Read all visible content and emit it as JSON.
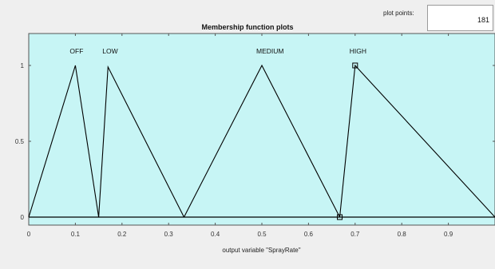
{
  "controls": {
    "plot_points_label": "plot points:",
    "plot_points_value": "181"
  },
  "chart_data": {
    "type": "line",
    "title": "Membership function plots",
    "xlabel": "output variable \"SprayRate\"",
    "ylabel": "",
    "xlim": [
      0,
      1
    ],
    "ylim": [
      -0.05,
      1.15
    ],
    "xticks": [
      "0",
      "0.1",
      "0.2",
      "0.3",
      "0.4",
      "0.5",
      "0.6",
      "0.7",
      "0.8",
      "0.9"
    ],
    "xtick_values": [
      0,
      0.1,
      0.2,
      0.3,
      0.4,
      0.5,
      0.6,
      0.7,
      0.8,
      0.9
    ],
    "yticks": [
      "0",
      "0.5",
      "1"
    ],
    "ytick_values": [
      0,
      0.5,
      1
    ],
    "background": "#c7f5f5",
    "line_color": "#000000",
    "series": [
      {
        "name": "OFF",
        "x": [
          0,
          0.1,
          0.15
        ],
        "y": [
          0,
          1,
          0
        ]
      },
      {
        "name": "LOW",
        "x": [
          0.15,
          0.17,
          0.333
        ],
        "y": [
          0,
          0.99,
          0
        ]
      },
      {
        "name": "MEDIUM",
        "x": [
          0.333,
          0.5,
          0.667
        ],
        "y": [
          0,
          1,
          0
        ]
      },
      {
        "name": "HIGH",
        "x": [
          0.667,
          0.7,
          1.0
        ],
        "y": [
          0,
          1,
          0
        ]
      }
    ],
    "selected_series": "HIGH"
  }
}
